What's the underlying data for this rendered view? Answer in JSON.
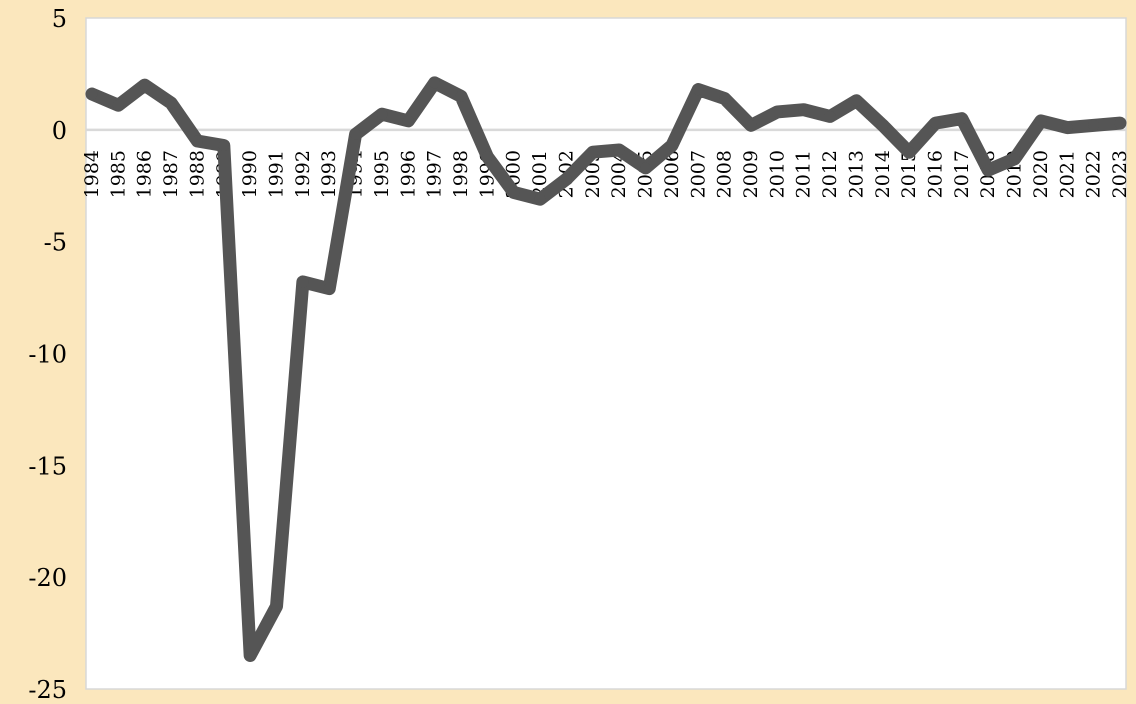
{
  "chart_data": {
    "type": "line",
    "title": "",
    "xlabel": "",
    "ylabel": "",
    "x": [
      "1984",
      "1985",
      "1986",
      "1987",
      "1988",
      "1989",
      "1990",
      "1991",
      "1992",
      "1993",
      "1994",
      "1995",
      "1996",
      "1997",
      "1998",
      "1999",
      "2000",
      "2001",
      "2002",
      "2003",
      "2004",
      "2005",
      "2006",
      "2007",
      "2008",
      "2009",
      "2010",
      "2011",
      "2012",
      "2013",
      "2014",
      "2015",
      "2016",
      "2017",
      "2018",
      "2019",
      "2020",
      "2021",
      "2022",
      "2023"
    ],
    "series": [
      {
        "values": [
          1.6,
          1.1,
          2.0,
          1.2,
          -0.5,
          -0.7,
          -23.5,
          -21.3,
          -6.8,
          -7.1,
          -0.2,
          0.7,
          0.4,
          2.1,
          1.5,
          -1.2,
          -2.8,
          -3.1,
          -2.2,
          -1.0,
          -0.9,
          -1.7,
          -0.7,
          1.8,
          1.4,
          0.2,
          0.8,
          0.9,
          0.6,
          1.3,
          0.2,
          -1.0,
          0.3,
          0.5,
          -1.8,
          -1.3,
          0.4,
          0.1,
          0.2,
          0.3
        ],
        "color": "#555555"
      }
    ],
    "ylim": [
      -25,
      5
    ],
    "yticks": [
      "5",
      "0",
      "-5",
      "-10",
      "-15",
      "-20",
      "-25"
    ],
    "grid": false,
    "zero_line": true,
    "legend": "none",
    "colors": {
      "background": "#fbe7bd",
      "plot_area": "#ffffff",
      "plot_border": "#d8d8d8",
      "zero_line": "#d9d9d9",
      "series": "#555555"
    }
  }
}
